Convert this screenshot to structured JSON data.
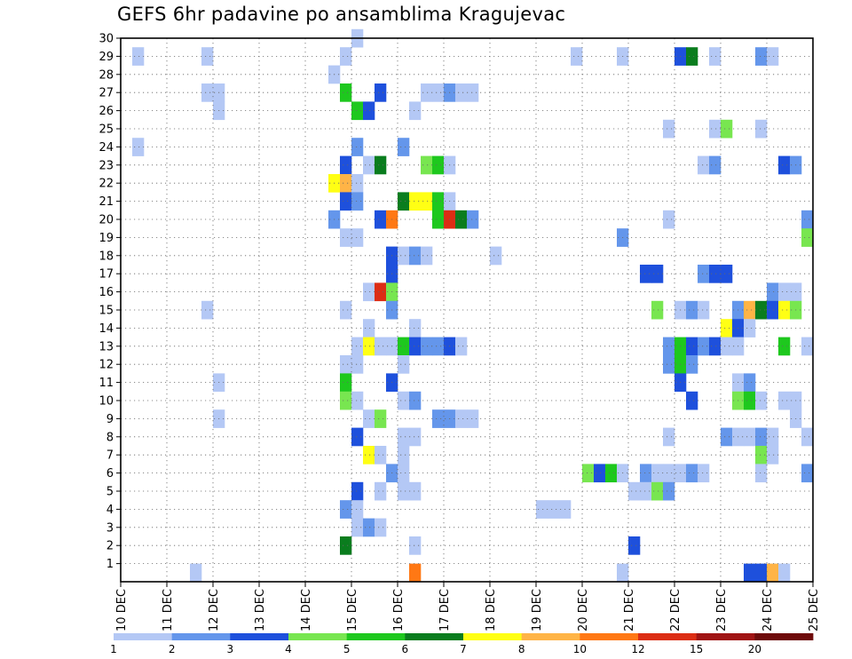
{
  "title": "GEFS 6hr padavine po ansamblima Kragujevac",
  "chart_data": {
    "type": "heatmap",
    "title": "GEFS 6hr padavine po ansamblima Kragujevac",
    "x_ticks": [
      "10 DEC",
      "11 DEC",
      "12 DEC",
      "13 DEC",
      "14 DEC",
      "15 DEC",
      "16 DEC",
      "17 DEC",
      "18 DEC",
      "19 DEC",
      "20 DEC",
      "21 DEC",
      "22 DEC",
      "23 DEC",
      "24 DEC",
      "25 DEC"
    ],
    "y_ticks": [
      1,
      2,
      3,
      4,
      5,
      6,
      7,
      8,
      9,
      10,
      11,
      12,
      13,
      14,
      15,
      16,
      17,
      18,
      19,
      20,
      21,
      22,
      23,
      24,
      25,
      26,
      27,
      28,
      29,
      30
    ],
    "x_range": [
      "10 DEC",
      "25 DEC"
    ],
    "y_range": [
      0,
      30
    ],
    "grid": true,
    "time_step_hours": 6,
    "colorbar": {
      "boundaries": [
        1,
        2,
        3,
        4,
        5,
        6,
        7,
        8,
        10,
        12,
        15,
        20
      ],
      "labels": [
        "1",
        "2",
        "3",
        "4",
        "5",
        "6",
        "7",
        "8",
        "10",
        "12",
        "15",
        "20"
      ],
      "colors": [
        "#b4c8f5",
        "#6496eb",
        "#1e50dc",
        "#78e650",
        "#1ec81e",
        "#0a7d1e",
        "#ffff14",
        "#ffb446",
        "#ff7814",
        "#dc2d14",
        "#a01414",
        "#6e0a0a"
      ]
    },
    "cells": [
      [
        0.25,
        29,
        1
      ],
      [
        1.75,
        29,
        1
      ],
      [
        4.75,
        29,
        1
      ],
      [
        9.75,
        29,
        1
      ],
      [
        10.75,
        29,
        1
      ],
      [
        12,
        29,
        3
      ],
      [
        12.25,
        29,
        6
      ],
      [
        12.75,
        29,
        1
      ],
      [
        13.75,
        29,
        2
      ],
      [
        14,
        29,
        1
      ],
      [
        5,
        30,
        1
      ],
      [
        4.5,
        28,
        1
      ],
      [
        1.75,
        27,
        1
      ],
      [
        2,
        27,
        1
      ],
      [
        4.75,
        27,
        5
      ],
      [
        5.5,
        27,
        3
      ],
      [
        6.5,
        27,
        1
      ],
      [
        6.75,
        27,
        1
      ],
      [
        7,
        27,
        2
      ],
      [
        7.25,
        27,
        1
      ],
      [
        7.5,
        27,
        1
      ],
      [
        2,
        26,
        1
      ],
      [
        5,
        26,
        5
      ],
      [
        5.25,
        26,
        3
      ],
      [
        6.25,
        26,
        1
      ],
      [
        11.75,
        25,
        1
      ],
      [
        12.75,
        25,
        1
      ],
      [
        13,
        25,
        4
      ],
      [
        13.75,
        25,
        1
      ],
      [
        0.25,
        24,
        1
      ],
      [
        5,
        24,
        2
      ],
      [
        6,
        24,
        2
      ],
      [
        4.75,
        23,
        3
      ],
      [
        5.25,
        23,
        1
      ],
      [
        5.5,
        23,
        6
      ],
      [
        6.5,
        23,
        4
      ],
      [
        6.75,
        23,
        5
      ],
      [
        7,
        23,
        1
      ],
      [
        12.5,
        23,
        1
      ],
      [
        12.75,
        23,
        2
      ],
      [
        14.25,
        23,
        3
      ],
      [
        14.5,
        23,
        2
      ],
      [
        4.5,
        22,
        7
      ],
      [
        4.75,
        22,
        8
      ],
      [
        5,
        22,
        1
      ],
      [
        4.75,
        21,
        3
      ],
      [
        5,
        21,
        2
      ],
      [
        6,
        21,
        6
      ],
      [
        6.25,
        21,
        7
      ],
      [
        6.5,
        21,
        7
      ],
      [
        6.75,
        21,
        5
      ],
      [
        7,
        21,
        1
      ],
      [
        4.5,
        20,
        2
      ],
      [
        5.5,
        20,
        3
      ],
      [
        5.75,
        20,
        9
      ],
      [
        6.75,
        20,
        5
      ],
      [
        7,
        20,
        10
      ],
      [
        7.25,
        20,
        6
      ],
      [
        7.5,
        20,
        2
      ],
      [
        11.75,
        20,
        1
      ],
      [
        14.75,
        20,
        2
      ],
      [
        14.75,
        19,
        4
      ],
      [
        4.75,
        19,
        1
      ],
      [
        5,
        19,
        1
      ],
      [
        10.75,
        19,
        2
      ],
      [
        5.75,
        18,
        3
      ],
      [
        6,
        18,
        1
      ],
      [
        6.25,
        18,
        2
      ],
      [
        6.5,
        18,
        1
      ],
      [
        8,
        18,
        1
      ],
      [
        5.75,
        17,
        3
      ],
      [
        11.25,
        17,
        3
      ],
      [
        11.5,
        17,
        3
      ],
      [
        12.5,
        17,
        2
      ],
      [
        12.75,
        17,
        3
      ],
      [
        13,
        17,
        3
      ],
      [
        5.25,
        16,
        1
      ],
      [
        5.5,
        16,
        10
      ],
      [
        5.75,
        16,
        4
      ],
      [
        14,
        16,
        2
      ],
      [
        14.25,
        16,
        1
      ],
      [
        14.5,
        16,
        1
      ],
      [
        1.75,
        15,
        1
      ],
      [
        4.75,
        15,
        1
      ],
      [
        5.75,
        15,
        2
      ],
      [
        11.5,
        15,
        4
      ],
      [
        12,
        15,
        1
      ],
      [
        12.25,
        15,
        2
      ],
      [
        12.5,
        15,
        1
      ],
      [
        13.25,
        15,
        2
      ],
      [
        13.5,
        15,
        8
      ],
      [
        13.75,
        15,
        6
      ],
      [
        14,
        15,
        3
      ],
      [
        14.25,
        15,
        7
      ],
      [
        14.5,
        15,
        4
      ],
      [
        5.25,
        14,
        1
      ],
      [
        6.25,
        14,
        1
      ],
      [
        13,
        14,
        7
      ],
      [
        13.25,
        14,
        3
      ],
      [
        13.5,
        14,
        1
      ],
      [
        5,
        13,
        1
      ],
      [
        5.25,
        13,
        7
      ],
      [
        5.5,
        13,
        1
      ],
      [
        5.75,
        13,
        1
      ],
      [
        6,
        13,
        5
      ],
      [
        6.25,
        13,
        3
      ],
      [
        6.5,
        13,
        2
      ],
      [
        6.75,
        13,
        2
      ],
      [
        7,
        13,
        3
      ],
      [
        7.25,
        13,
        1
      ],
      [
        11.75,
        13,
        2
      ],
      [
        12,
        13,
        5
      ],
      [
        12.25,
        13,
        3
      ],
      [
        12.5,
        13,
        2
      ],
      [
        12.75,
        13,
        3
      ],
      [
        13,
        13,
        1
      ],
      [
        13.25,
        13,
        1
      ],
      [
        14.25,
        13,
        5
      ],
      [
        14.75,
        13,
        1
      ],
      [
        4.75,
        12,
        1
      ],
      [
        5,
        12,
        1
      ],
      [
        6,
        12,
        1
      ],
      [
        11.75,
        12,
        2
      ],
      [
        12,
        12,
        5
      ],
      [
        12.25,
        12,
        2
      ],
      [
        2,
        11,
        1
      ],
      [
        4.75,
        11,
        5
      ],
      [
        5.75,
        11,
        3
      ],
      [
        12,
        11,
        3
      ],
      [
        13.25,
        11,
        1
      ],
      [
        13.5,
        11,
        2
      ],
      [
        4.75,
        10,
        4
      ],
      [
        5,
        10,
        1
      ],
      [
        6,
        10,
        1
      ],
      [
        6.25,
        10,
        2
      ],
      [
        12.25,
        10,
        3
      ],
      [
        13.25,
        10,
        4
      ],
      [
        13.5,
        10,
        5
      ],
      [
        13.75,
        10,
        1
      ],
      [
        14.25,
        10,
        1
      ],
      [
        14.5,
        10,
        1
      ],
      [
        2,
        9,
        1
      ],
      [
        5.25,
        9,
        1
      ],
      [
        5.5,
        9,
        4
      ],
      [
        6.75,
        9,
        2
      ],
      [
        7,
        9,
        2
      ],
      [
        7.25,
        9,
        1
      ],
      [
        7.5,
        9,
        1
      ],
      [
        14.5,
        9,
        1
      ],
      [
        5,
        8,
        3
      ],
      [
        6,
        8,
        1
      ],
      [
        6.25,
        8,
        1
      ],
      [
        11.75,
        8,
        1
      ],
      [
        13,
        8,
        2
      ],
      [
        13.25,
        8,
        1
      ],
      [
        13.5,
        8,
        1
      ],
      [
        13.75,
        8,
        2
      ],
      [
        14,
        8,
        1
      ],
      [
        14.75,
        8,
        1
      ],
      [
        5.25,
        7,
        7
      ],
      [
        5.5,
        7,
        1
      ],
      [
        6,
        7,
        1
      ],
      [
        13.75,
        7,
        4
      ],
      [
        14,
        7,
        1
      ],
      [
        5.75,
        6,
        2
      ],
      [
        6,
        6,
        1
      ],
      [
        10,
        6,
        4
      ],
      [
        10.25,
        6,
        3
      ],
      [
        10.5,
        6,
        5
      ],
      [
        10.75,
        6,
        1
      ],
      [
        11.25,
        6,
        2
      ],
      [
        11.5,
        6,
        1
      ],
      [
        11.75,
        6,
        1
      ],
      [
        12,
        6,
        1
      ],
      [
        12.25,
        6,
        2
      ],
      [
        12.5,
        6,
        1
      ],
      [
        13.75,
        6,
        1
      ],
      [
        14.75,
        6,
        2
      ],
      [
        5,
        5,
        3
      ],
      [
        5.5,
        5,
        1
      ],
      [
        6,
        5,
        1
      ],
      [
        6.25,
        5,
        1
      ],
      [
        11,
        5,
        1
      ],
      [
        11.25,
        5,
        1
      ],
      [
        11.5,
        5,
        4
      ],
      [
        11.75,
        5,
        2
      ],
      [
        4.75,
        4,
        2
      ],
      [
        5,
        4,
        1
      ],
      [
        9,
        4,
        1
      ],
      [
        9.25,
        4,
        1
      ],
      [
        9.5,
        4,
        1
      ],
      [
        5,
        3,
        1
      ],
      [
        5.25,
        3,
        2
      ],
      [
        5.5,
        3,
        1
      ],
      [
        4.75,
        2,
        6
      ],
      [
        6.25,
        2,
        1
      ],
      [
        11,
        2,
        3
      ],
      [
        1.5,
        0.5,
        1
      ],
      [
        6.25,
        0.5,
        9
      ],
      [
        10.75,
        0.5,
        1
      ],
      [
        13.5,
        0.5,
        3
      ],
      [
        13.75,
        0.5,
        3
      ],
      [
        14,
        0.5,
        8
      ],
      [
        14.25,
        0.5,
        1
      ]
    ]
  }
}
